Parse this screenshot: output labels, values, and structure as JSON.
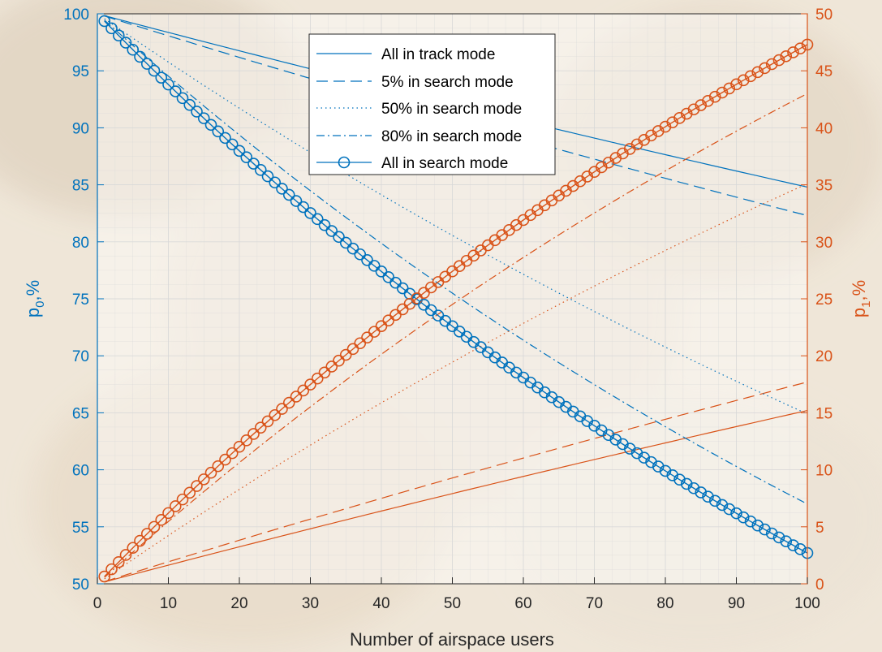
{
  "chart_data": {
    "type": "line",
    "title": "",
    "xlabel": "Number of airspace users",
    "ylabel_left": {
      "base": "p",
      "sub": "0",
      "suffix": ",%"
    },
    "ylabel_right": {
      "base": "p",
      "sub": "1",
      "suffix": ",%"
    },
    "xlim": [
      0,
      100
    ],
    "ylim_left": [
      50,
      100
    ],
    "ylim_right": [
      0,
      50
    ],
    "xticks": [
      "0",
      "10",
      "20",
      "30",
      "40",
      "50",
      "60",
      "70",
      "80",
      "90",
      "100"
    ],
    "yticks_left": [
      "50",
      "55",
      "60",
      "65",
      "70",
      "75",
      "80",
      "85",
      "90",
      "95",
      "100"
    ],
    "yticks_right": [
      "0",
      "5",
      "10",
      "15",
      "20",
      "25",
      "30",
      "35",
      "40",
      "45",
      "50"
    ],
    "grid": true,
    "legend_position": "top-center",
    "colors": {
      "left": "#0072BD",
      "right": "#D95319",
      "grid": "#d8d8d8"
    },
    "series": [
      {
        "name": "All in track mode",
        "style": "solid",
        "marker": "none",
        "p0_at_1": 99.85,
        "p0_at_100": 84.8,
        "p1_at_1": 0.15,
        "p1_at_100": 15.2
      },
      {
        "name": "5% in search mode",
        "style": "dashed",
        "marker": "none",
        "p0_at_1": 99.8,
        "p0_at_100": 82.3,
        "p1_at_1": 0.2,
        "p1_at_100": 17.7
      },
      {
        "name": "50% in search mode",
        "style": "dotted",
        "marker": "none",
        "p0_at_1": 99.45,
        "p0_at_100": 64.9,
        "p1_at_1": 0.55,
        "p1_at_100": 35.1
      },
      {
        "name": "80% in search mode",
        "style": "dashdot",
        "marker": "none",
        "p0_at_1": 99.2,
        "p0_at_100": 57.0,
        "p1_at_1": 0.8,
        "p1_at_100": 43.0
      },
      {
        "name": "All in search mode",
        "style": "solid",
        "marker": "circle",
        "p0_at_1": 99.1,
        "p0_at_100": 52.7,
        "p1_at_1": 0.9,
        "p1_at_100": 47.3
      }
    ]
  }
}
